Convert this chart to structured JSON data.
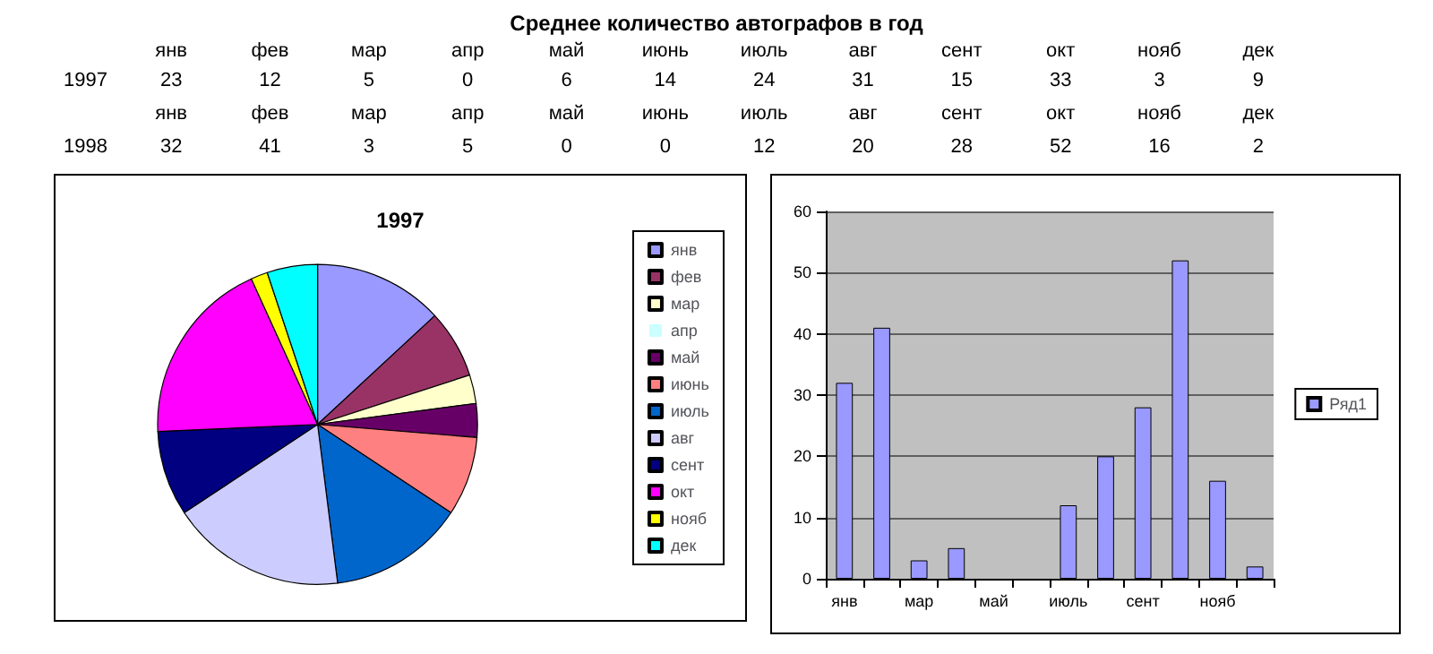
{
  "chart_data": [
    {
      "type": "heatmap",
      "title": "Среднее количество автографов в год",
      "data_labels": true,
      "categories": [
        "янв",
        "фев",
        "мар",
        "апр",
        "май",
        "июнь",
        "июль",
        "авг",
        "сент",
        "окт",
        "нояб",
        "дек"
      ],
      "y_categories": [
        "1997"
      ],
      "cells": [
        [
          23,
          12,
          5,
          0,
          6,
          14,
          24,
          31,
          15,
          33,
          3,
          9
        ]
      ]
    },
    {
      "type": "heatmap",
      "data_labels": true,
      "categories": [
        "янв",
        "фев",
        "мар",
        "апр",
        "май",
        "июнь",
        "июль",
        "авг",
        "сент",
        "окт",
        "нояб",
        "дек"
      ],
      "y_categories": [
        "1998"
      ],
      "cells": [
        [
          32,
          41,
          3,
          5,
          0,
          0,
          12,
          20,
          28,
          52,
          16,
          2
        ]
      ]
    },
    {
      "type": "pie",
      "title": "1997",
      "legend": "right",
      "categories": [
        "янв",
        "фев",
        "мар",
        "апр",
        "май",
        "июнь",
        "июль",
        "авг",
        "сент",
        "окт",
        "нояб",
        "дек"
      ],
      "values": [
        13.1,
        6.9,
        2.9,
        0,
        3.4,
        8.0,
        13.7,
        17.7,
        8.6,
        18.9,
        1.7,
        5.1
      ],
      "colors": [
        "#9999ff",
        "#993366",
        "#ffffcc",
        "#ccffff",
        "#660066",
        "#ff8080",
        "#0066cc",
        "#ccccff",
        "#000080",
        "#ff00ff",
        "#ffff00",
        "#00ffff"
      ]
    },
    {
      "type": "bar",
      "legend": "right",
      "grid": "y",
      "ylim": [
        0,
        60
      ],
      "yticks": [
        0,
        10,
        20,
        30,
        40,
        50,
        60
      ],
      "categories": [
        "янв",
        null,
        "мар",
        null,
        "май",
        null,
        "июль",
        null,
        "сент",
        null,
        "нояб",
        null
      ],
      "series": [
        {
          "name": "Ряд1",
          "color": "#9999ff",
          "values": [
            32,
            41,
            3,
            5,
            0,
            0,
            12,
            20,
            28,
            52,
            16,
            2
          ]
        }
      ]
    }
  ]
}
